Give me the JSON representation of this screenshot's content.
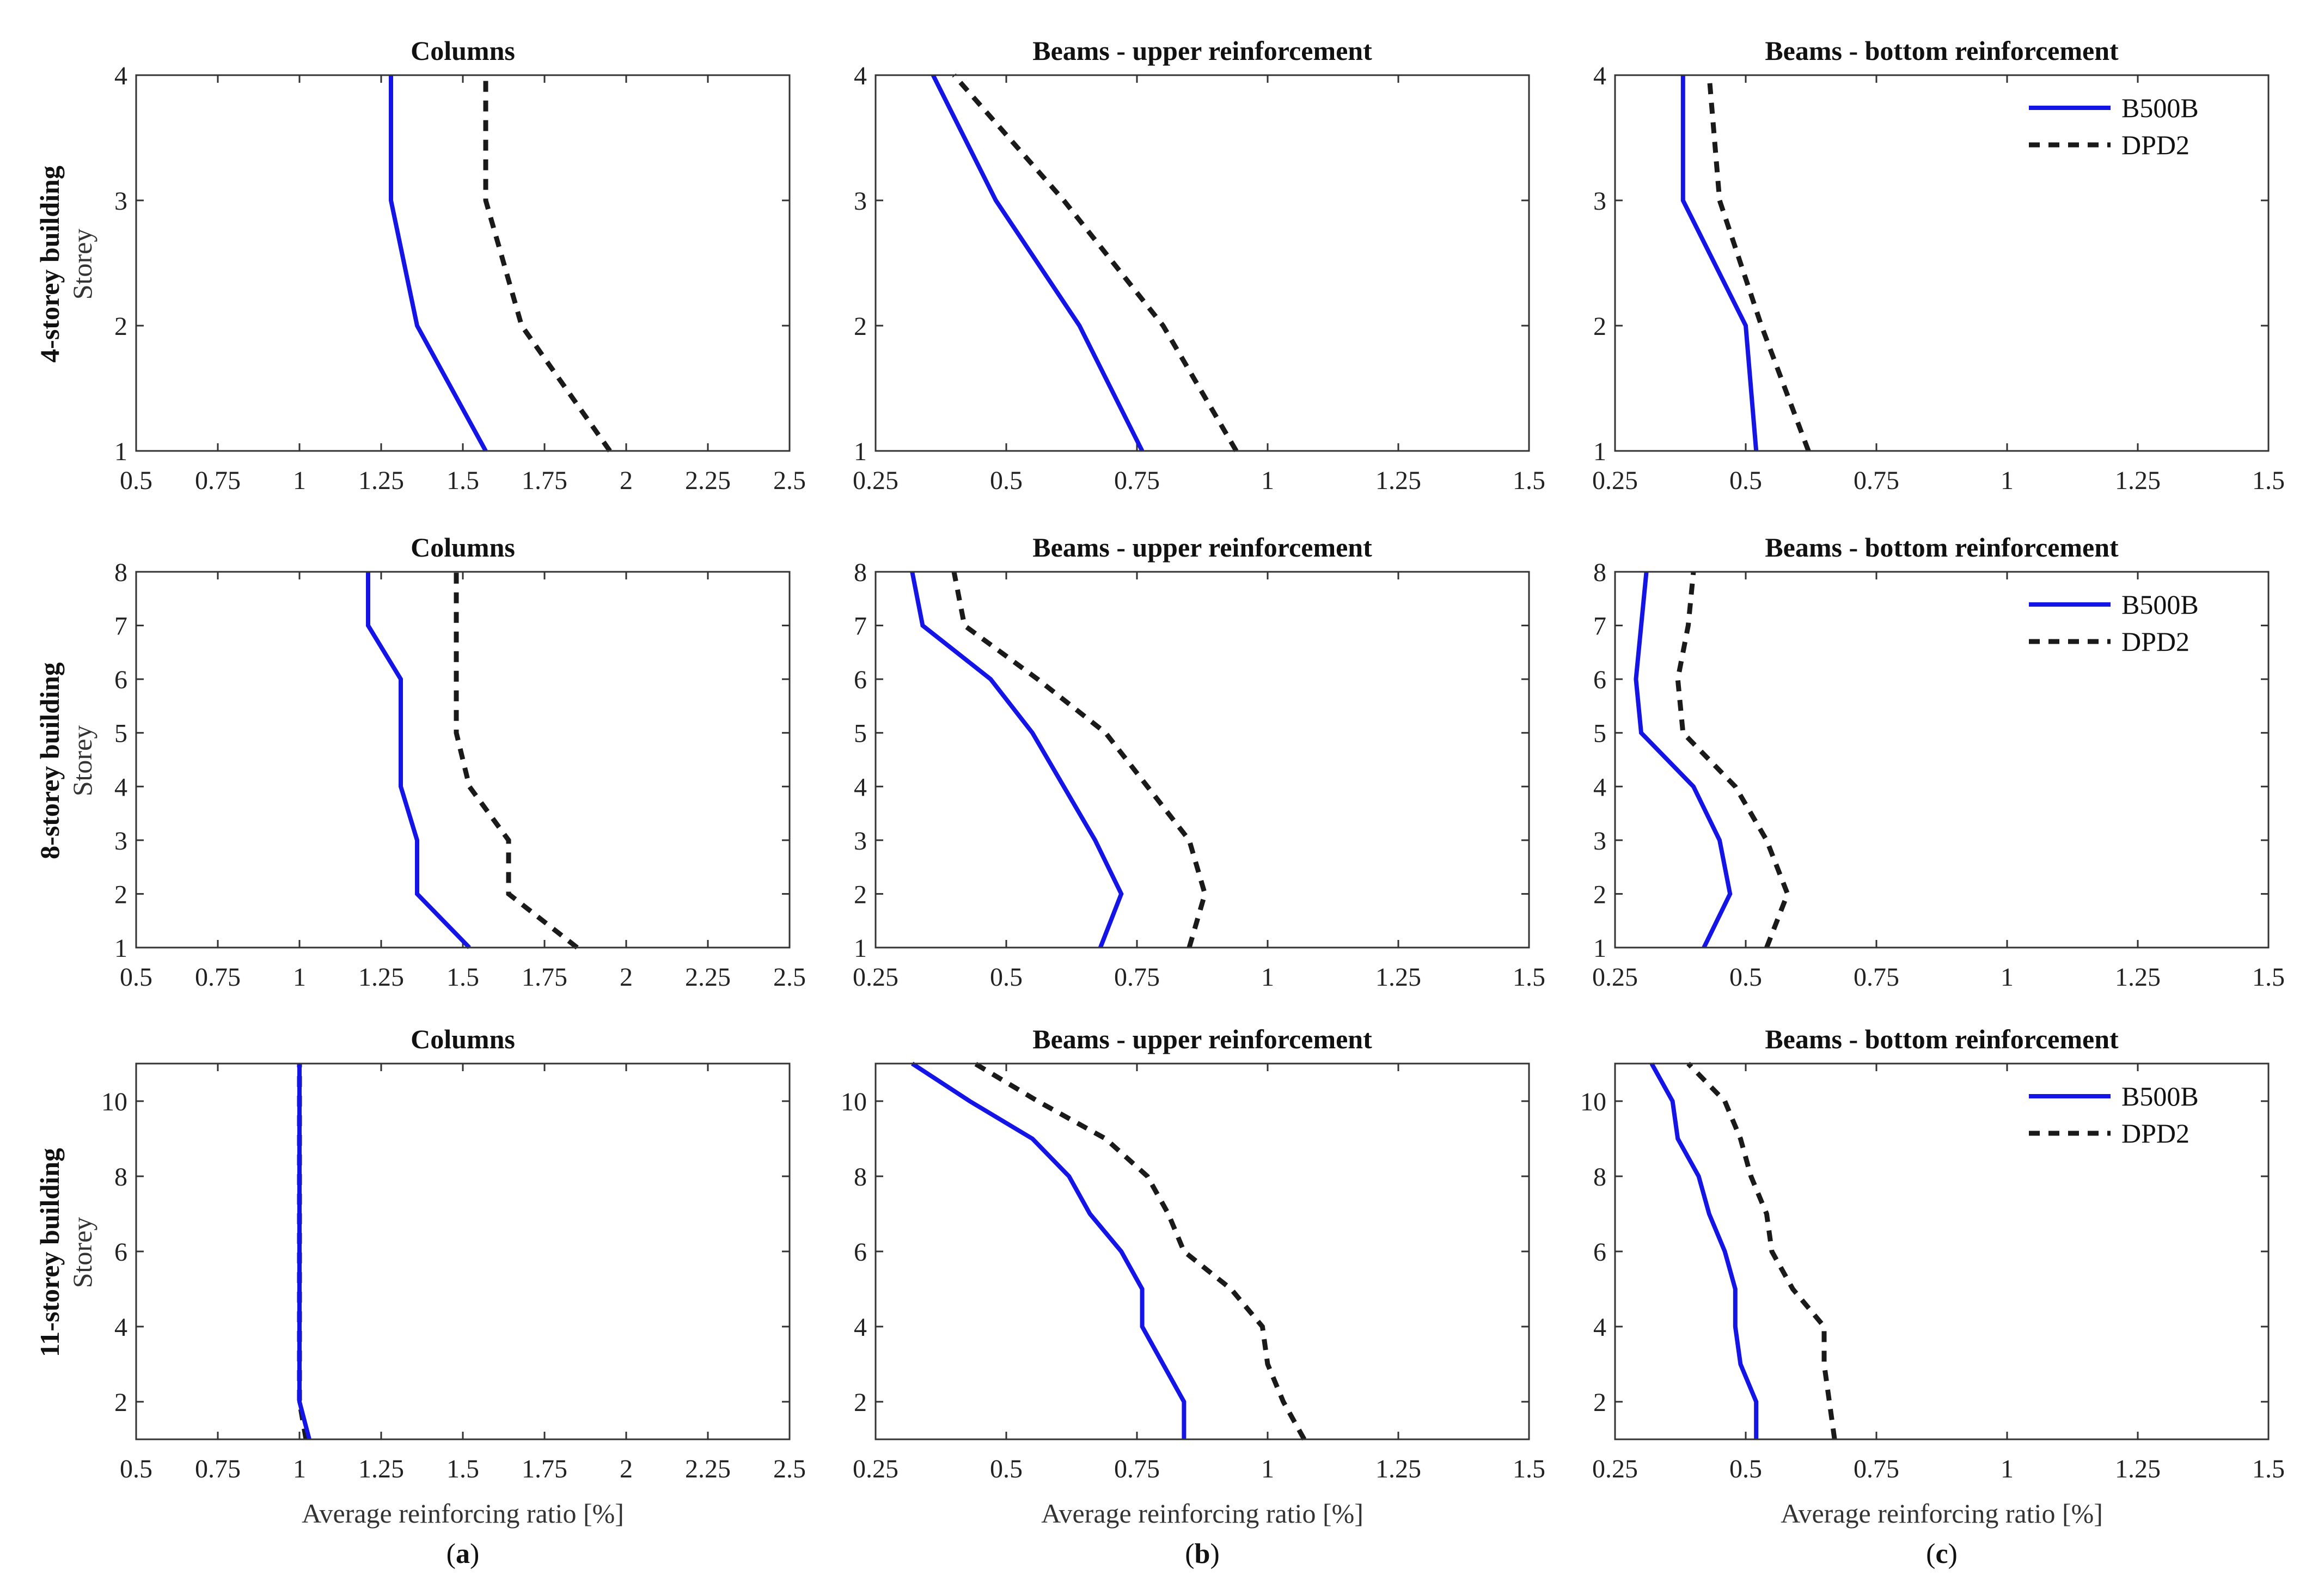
{
  "figure": {
    "row_labels": [
      "4-storey building",
      "8-storey building",
      "11-storey building"
    ],
    "y_label": "Storey",
    "x_label": "Average reinforcing ratio [%]",
    "column_labels": [
      {
        "open": "(",
        "letter": "a",
        "close": ")"
      },
      {
        "open": "(",
        "letter": "b",
        "close": ")"
      },
      {
        "open": "(",
        "letter": "c",
        "close": ")"
      }
    ]
  },
  "legend": {
    "entries": [
      "B500B",
      "DPD2"
    ]
  },
  "colors": {
    "B500B": "#1414e6",
    "DPD2": "#1a1a1a"
  },
  "chart_data": [
    {
      "type": "line",
      "title": "Columns",
      "xlim": [
        0.5,
        2.5
      ],
      "xticks": [
        0.5,
        0.75,
        1,
        1.25,
        1.5,
        1.75,
        2,
        2.25,
        2.5
      ],
      "xtick_labels": [
        "0.5",
        "0.75",
        "1",
        "1.25",
        "1.5",
        "1.75",
        "2",
        "2.25",
        "2.5"
      ],
      "ylim": [
        1,
        4
      ],
      "yticks": [
        1,
        2,
        3,
        4
      ],
      "ytick_labels": [
        "1",
        "2",
        "3",
        "4"
      ],
      "xlabel": "",
      "ylabel": "Storey",
      "legend": false,
      "series": [
        {
          "name": "B500B",
          "x": [
            1.57,
            1.36,
            1.28,
            1.28
          ],
          "y": [
            1,
            2,
            3,
            4
          ]
        },
        {
          "name": "DPD2",
          "x": [
            1.95,
            1.68,
            1.57,
            1.57
          ],
          "y": [
            1,
            2,
            3,
            4
          ]
        }
      ]
    },
    {
      "type": "line",
      "title": "Beams - upper reinforcement",
      "xlim": [
        0.25,
        1.5
      ],
      "xticks": [
        0.25,
        0.5,
        0.75,
        1,
        1.25,
        1.5
      ],
      "xtick_labels": [
        "0.25",
        "0.5",
        "0.75",
        "1",
        "1.25",
        "1.5"
      ],
      "ylim": [
        1,
        4
      ],
      "yticks": [
        1,
        2,
        3,
        4
      ],
      "ytick_labels": [
        "1",
        "2",
        "3",
        "4"
      ],
      "xlabel": "",
      "ylabel": "",
      "legend": false,
      "series": [
        {
          "name": "B500B",
          "x": [
            0.76,
            0.64,
            0.48,
            0.36
          ],
          "y": [
            1,
            2,
            3,
            4
          ]
        },
        {
          "name": "DPD2",
          "x": [
            0.94,
            0.8,
            0.61,
            0.4
          ],
          "y": [
            1,
            2,
            3,
            4
          ]
        }
      ]
    },
    {
      "type": "line",
      "title": "Beams - bottom reinforcement",
      "xlim": [
        0.25,
        1.5
      ],
      "xticks": [
        0.25,
        0.5,
        0.75,
        1,
        1.25,
        1.5
      ],
      "xtick_labels": [
        "0.25",
        "0.5",
        "0.75",
        "1",
        "1.25",
        "1.5"
      ],
      "ylim": [
        1,
        4
      ],
      "yticks": [
        1,
        2,
        3,
        4
      ],
      "ytick_labels": [
        "1",
        "2",
        "3",
        "4"
      ],
      "xlabel": "",
      "ylabel": "",
      "legend": true,
      "series": [
        {
          "name": "B500B",
          "x": [
            0.52,
            0.5,
            0.38,
            0.38
          ],
          "y": [
            1,
            2,
            3,
            4
          ]
        },
        {
          "name": "DPD2",
          "x": [
            0.62,
            0.53,
            0.45,
            0.43
          ],
          "y": [
            1,
            2,
            3,
            4
          ]
        }
      ]
    },
    {
      "type": "line",
      "title": "Columns",
      "xlim": [
        0.5,
        2.5
      ],
      "xticks": [
        0.5,
        0.75,
        1,
        1.25,
        1.5,
        1.75,
        2,
        2.25,
        2.5
      ],
      "xtick_labels": [
        "0.5",
        "0.75",
        "1",
        "1.25",
        "1.5",
        "1.75",
        "2",
        "2.25",
        "2.5"
      ],
      "ylim": [
        1,
        8
      ],
      "yticks": [
        1,
        2,
        3,
        4,
        5,
        6,
        7,
        8
      ],
      "ytick_labels": [
        "1",
        "2",
        "3",
        "4",
        "5",
        "6",
        "7",
        "8"
      ],
      "xlabel": "",
      "ylabel": "Storey",
      "legend": false,
      "series": [
        {
          "name": "B500B",
          "x": [
            1.52,
            1.36,
            1.36,
            1.31,
            1.31,
            1.31,
            1.21,
            1.21
          ],
          "y": [
            1,
            2,
            3,
            4,
            5,
            6,
            7,
            8
          ]
        },
        {
          "name": "DPD2",
          "x": [
            1.85,
            1.64,
            1.64,
            1.52,
            1.48,
            1.48,
            1.48,
            1.48
          ],
          "y": [
            1,
            2,
            3,
            4,
            5,
            6,
            7,
            8
          ]
        }
      ]
    },
    {
      "type": "line",
      "title": "Beams - upper reinforcement",
      "xlim": [
        0.25,
        1.5
      ],
      "xticks": [
        0.25,
        0.5,
        0.75,
        1,
        1.25,
        1.5
      ],
      "xtick_labels": [
        "0.25",
        "0.5",
        "0.75",
        "1",
        "1.25",
        "1.5"
      ],
      "ylim": [
        1,
        8
      ],
      "yticks": [
        1,
        2,
        3,
        4,
        5,
        6,
        7,
        8
      ],
      "ytick_labels": [
        "1",
        "2",
        "3",
        "4",
        "5",
        "6",
        "7",
        "8"
      ],
      "xlabel": "",
      "ylabel": "",
      "legend": false,
      "series": [
        {
          "name": "B500B",
          "x": [
            0.68,
            0.72,
            0.67,
            0.61,
            0.55,
            0.47,
            0.34,
            0.32
          ],
          "y": [
            1,
            2,
            3,
            4,
            5,
            6,
            7,
            8
          ]
        },
        {
          "name": "DPD2",
          "x": [
            0.85,
            0.88,
            0.85,
            0.77,
            0.69,
            0.56,
            0.42,
            0.4
          ],
          "y": [
            1,
            2,
            3,
            4,
            5,
            6,
            7,
            8
          ]
        }
      ]
    },
    {
      "type": "line",
      "title": "Beams - bottom reinforcement",
      "xlim": [
        0.25,
        1.5
      ],
      "xticks": [
        0.25,
        0.5,
        0.75,
        1,
        1.25,
        1.5
      ],
      "xtick_labels": [
        "0.25",
        "0.5",
        "0.75",
        "1",
        "1.25",
        "1.5"
      ],
      "ylim": [
        1,
        8
      ],
      "yticks": [
        1,
        2,
        3,
        4,
        5,
        6,
        7,
        8
      ],
      "ytick_labels": [
        "1",
        "2",
        "3",
        "4",
        "5",
        "6",
        "7",
        "8"
      ],
      "xlabel": "",
      "ylabel": "",
      "legend": true,
      "series": [
        {
          "name": "B500B",
          "x": [
            0.42,
            0.47,
            0.45,
            0.4,
            0.3,
            0.29,
            0.3,
            0.31
          ],
          "y": [
            1,
            2,
            3,
            4,
            5,
            6,
            7,
            8
          ]
        },
        {
          "name": "DPD2",
          "x": [
            0.54,
            0.58,
            0.54,
            0.48,
            0.38,
            0.37,
            0.39,
            0.4
          ],
          "y": [
            1,
            2,
            3,
            4,
            5,
            6,
            7,
            8
          ]
        }
      ]
    },
    {
      "type": "line",
      "title": "Columns",
      "xlim": [
        0.5,
        2.5
      ],
      "xticks": [
        0.5,
        0.75,
        1,
        1.25,
        1.5,
        1.75,
        2,
        2.25,
        2.5
      ],
      "xtick_labels": [
        "0.5",
        "0.75",
        "1",
        "1.25",
        "1.5",
        "1.75",
        "2",
        "2.25",
        "2.5"
      ],
      "ylim": [
        1,
        11
      ],
      "yticks": [
        2,
        4,
        6,
        8,
        10
      ],
      "ytick_labels": [
        "2",
        "4",
        "6",
        "8",
        "10"
      ],
      "xlabel": "Average reinforcing ratio [%]",
      "ylabel": "Storey",
      "legend": false,
      "series": [
        {
          "name": "B500B",
          "x": [
            1.03,
            1.0,
            1.0,
            1.0,
            1.0,
            1.0,
            1.0,
            1.0,
            1.0,
            1.0,
            1.0
          ],
          "y": [
            1,
            2,
            3,
            4,
            5,
            6,
            7,
            8,
            9,
            10,
            11
          ]
        },
        {
          "name": "DPD2",
          "x": [
            1.02,
            1.0,
            1.0,
            1.0,
            1.0,
            1.0,
            1.0,
            1.0,
            1.0,
            1.0,
            1.0
          ],
          "y": [
            1,
            2,
            3,
            4,
            5,
            6,
            7,
            8,
            9,
            10,
            11
          ]
        }
      ]
    },
    {
      "type": "line",
      "title": "Beams - upper reinforcement",
      "xlim": [
        0.25,
        1.5
      ],
      "xticks": [
        0.25,
        0.5,
        0.75,
        1,
        1.25,
        1.5
      ],
      "xtick_labels": [
        "0.25",
        "0.5",
        "0.75",
        "1",
        "1.25",
        "1.5"
      ],
      "ylim": [
        1,
        11
      ],
      "yticks": [
        2,
        4,
        6,
        8,
        10
      ],
      "ytick_labels": [
        "2",
        "4",
        "6",
        "8",
        "10"
      ],
      "xlabel": "Average reinforcing ratio [%]",
      "ylabel": "",
      "legend": false,
      "series": [
        {
          "name": "B500B",
          "x": [
            0.84,
            0.84,
            0.8,
            0.76,
            0.76,
            0.72,
            0.66,
            0.62,
            0.55,
            0.43,
            0.32
          ],
          "y": [
            1,
            2,
            3,
            4,
            5,
            6,
            7,
            8,
            9,
            10,
            11
          ]
        },
        {
          "name": "DPD2",
          "x": [
            1.07,
            1.03,
            1.0,
            0.99,
            0.93,
            0.84,
            0.81,
            0.77,
            0.69,
            0.56,
            0.44
          ],
          "y": [
            1,
            2,
            3,
            4,
            5,
            6,
            7,
            8,
            9,
            10,
            11
          ]
        }
      ]
    },
    {
      "type": "line",
      "title": "Beams - bottom reinforcement",
      "xlim": [
        0.25,
        1.5
      ],
      "xticks": [
        0.25,
        0.5,
        0.75,
        1,
        1.25,
        1.5
      ],
      "xtick_labels": [
        "0.25",
        "0.5",
        "0.75",
        "1",
        "1.25",
        "1.5"
      ],
      "ylim": [
        1,
        11
      ],
      "yticks": [
        2,
        4,
        6,
        8,
        10
      ],
      "ytick_labels": [
        "2",
        "4",
        "6",
        "8",
        "10"
      ],
      "xlabel": "Average reinforcing ratio [%]",
      "ylabel": "",
      "legend": true,
      "series": [
        {
          "name": "B500B",
          "x": [
            0.52,
            0.52,
            0.49,
            0.48,
            0.48,
            0.46,
            0.43,
            0.41,
            0.37,
            0.36,
            0.32
          ],
          "y": [
            1,
            2,
            3,
            4,
            5,
            6,
            7,
            8,
            9,
            10,
            11
          ]
        },
        {
          "name": "DPD2",
          "x": [
            0.67,
            0.66,
            0.65,
            0.65,
            0.59,
            0.55,
            0.54,
            0.51,
            0.49,
            0.46,
            0.39
          ],
          "y": [
            1,
            2,
            3,
            4,
            5,
            6,
            7,
            8,
            9,
            10,
            11
          ]
        }
      ]
    }
  ]
}
